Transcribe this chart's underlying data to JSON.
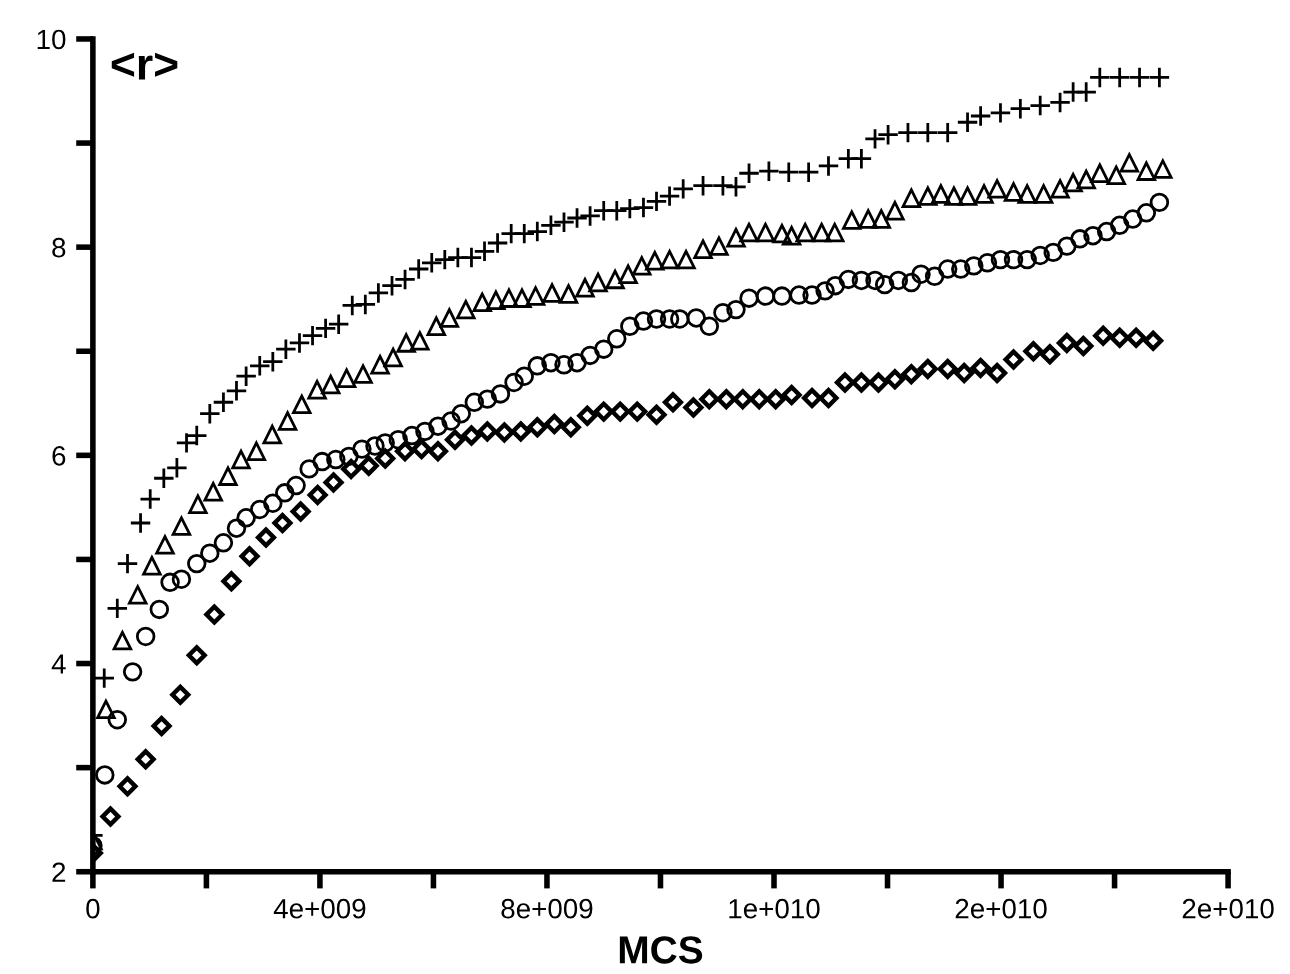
{
  "chart_data": {
    "type": "scatter",
    "xlabel": "MCS",
    "ylabel": "<r>",
    "xlim": [
      0,
      20000000000
    ],
    "ylim": [
      2,
      10
    ],
    "xticks": [
      0,
      {
        "value": 2000000000.0,
        "label": null
      },
      {
        "value": 4000000000.0,
        "label": "4e+009"
      },
      {
        "value": 6000000000.0,
        "label": null
      },
      {
        "value": 8000000000.0,
        "label": "8e+009"
      },
      {
        "value": 10000000000.0,
        "label": null
      },
      {
        "value": 12000000000.0,
        "label": "1e+010"
      },
      {
        "value": 14000000000.0,
        "label": null
      },
      {
        "value": 16000000000.0,
        "label": "2e+010"
      },
      {
        "value": 18000000000.0,
        "label": null
      },
      {
        "value": 20000000000.0,
        "label": "2e+010"
      }
    ],
    "yticks": [
      2,
      {
        "value": 3,
        "label": null
      },
      4,
      {
        "value": 5,
        "label": null
      },
      6,
      {
        "value": 7,
        "label": null
      },
      8,
      {
        "value": 9,
        "label": null
      },
      10
    ],
    "grid": false,
    "legend": false,
    "series": [
      {
        "color": "#000000",
        "marker": "cross",
        "x": [
          0,
          200000000.0,
          430000000.0,
          610000000.0,
          840000000.0,
          1010000000.0,
          1250000000.0,
          1480000000.0,
          1650000000.0,
          1830000000.0,
          2060000000.0,
          2300000000.0,
          2530000000.0,
          2700000000.0,
          2940000000.0,
          3170000000.0,
          3400000000.0,
          3640000000.0,
          3870000000.0,
          4100000000.0,
          4330000000.0,
          4570000000.0,
          4800000000.0,
          5030000000.0,
          5270000000.0,
          5500000000.0,
          5740000000.0,
          5970000000.0,
          6200000000.0,
          6430000000.0,
          6670000000.0,
          6900000000.0,
          7130000000.0,
          7370000000.0,
          7600000000.0,
          7830000000.0,
          8070000000.0,
          8300000000.0,
          8530000000.0,
          8760000000.0,
          9000000000.0,
          9230000000.0,
          9460000000.0,
          9700000000.0,
          9930000000.0,
          10160000000.0,
          10400000000.0,
          10750000000.0,
          11100000000.0,
          11330000000.0,
          11560000000.0,
          11910000000.0,
          12260000000.0,
          12610000000.0,
          12960000000.0,
          13310000000.0,
          13540000000.0,
          13780000000.0,
          14010000000.0,
          14360000000.0,
          14710000000.0,
          15060000000.0,
          15410000000.0,
          15640000000.0,
          15990000000.0,
          16340000000.0,
          16690000000.0,
          17040000000.0,
          17270000000.0,
          17500000000.0,
          17740000000.0,
          18090000000.0,
          18440000000.0,
          18790000000.0
        ],
        "values": [
          2.35,
          3.86,
          4.53,
          4.96,
          5.35,
          5.58,
          5.78,
          5.88,
          6.12,
          6.19,
          6.4,
          6.51,
          6.62,
          6.76,
          6.86,
          6.9,
          7.02,
          7.08,
          7.15,
          7.22,
          7.26,
          7.44,
          7.45,
          7.56,
          7.63,
          7.69,
          7.79,
          7.85,
          7.88,
          7.9,
          7.9,
          7.96,
          8.04,
          8.13,
          8.13,
          8.15,
          8.21,
          8.24,
          8.28,
          8.3,
          8.35,
          8.35,
          8.37,
          8.38,
          8.44,
          8.49,
          8.56,
          8.59,
          8.59,
          8.58,
          8.71,
          8.73,
          8.72,
          8.72,
          8.78,
          8.85,
          8.85,
          9.04,
          9.08,
          9.1,
          9.1,
          9.1,
          9.2,
          9.26,
          9.29,
          9.33,
          9.36,
          9.39,
          9.49,
          9.49,
          9.63,
          9.63,
          9.63,
          9.63
        ]
      },
      {
        "color": "#000000",
        "marker": "triangle",
        "x": [
          0,
          230000000.0,
          520000000.0,
          790000000.0,
          1040000000.0,
          1270000000.0,
          1560000000.0,
          1850000000.0,
          2120000000.0,
          2380000000.0,
          2610000000.0,
          2880000000.0,
          3160000000.0,
          3430000000.0,
          3680000000.0,
          3950000000.0,
          4190000000.0,
          4470000000.0,
          4760000000.0,
          5060000000.0,
          5290000000.0,
          5520000000.0,
          5760000000.0,
          6050000000.0,
          6280000000.0,
          6570000000.0,
          6860000000.0,
          7100000000.0,
          7330000000.0,
          7560000000.0,
          7800000000.0,
          8090000000.0,
          8380000000.0,
          8670000000.0,
          8900000000.0,
          9200000000.0,
          9430000000.0,
          9670000000.0,
          9900000000.0,
          10160000000.0,
          10450000000.0,
          10750000000.0,
          11030000000.0,
          11330000000.0,
          11560000000.0,
          11850000000.0,
          12140000000.0,
          12310000000.0,
          12550000000.0,
          12840000000.0,
          13070000000.0,
          13370000000.0,
          13660000000.0,
          13890000000.0,
          14130000000.0,
          14420000000.0,
          14710000000.0,
          14940000000.0,
          15170000000.0,
          15410000000.0,
          15700000000.0,
          15930000000.0,
          16220000000.0,
          16460000000.0,
          16750000000.0,
          17040000000.0,
          17270000000.0,
          17500000000.0,
          17740000000.0,
          18030000000.0,
          18260000000.0,
          18560000000.0,
          18850000000.0
        ],
        "values": [
          2.3,
          3.56,
          4.22,
          4.66,
          4.94,
          5.14,
          5.32,
          5.53,
          5.65,
          5.8,
          5.96,
          6.04,
          6.2,
          6.33,
          6.49,
          6.63,
          6.68,
          6.74,
          6.78,
          6.87,
          6.94,
          7.08,
          7.1,
          7.24,
          7.32,
          7.4,
          7.47,
          7.49,
          7.51,
          7.51,
          7.53,
          7.56,
          7.55,
          7.61,
          7.66,
          7.69,
          7.74,
          7.82,
          7.87,
          7.88,
          7.88,
          7.98,
          8.01,
          8.09,
          8.14,
          8.14,
          8.13,
          8.11,
          8.14,
          8.14,
          8.14,
          8.26,
          8.27,
          8.27,
          8.35,
          8.47,
          8.49,
          8.51,
          8.49,
          8.49,
          8.51,
          8.56,
          8.53,
          8.51,
          8.51,
          8.56,
          8.62,
          8.65,
          8.71,
          8.69,
          8.81,
          8.73,
          8.75
        ]
      },
      {
        "color": "#000000",
        "marker": "circle",
        "x": [
          0,
          210000000.0,
          430000000.0,
          700000000.0,
          930000000.0,
          1170000000.0,
          1360000000.0,
          1560000000.0,
          1830000000.0,
          2060000000.0,
          2300000000.0,
          2530000000.0,
          2700000000.0,
          2940000000.0,
          3170000000.0,
          3380000000.0,
          3580000000.0,
          3810000000.0,
          4040000000.0,
          4280000000.0,
          4510000000.0,
          4740000000.0,
          4970000000.0,
          5150000000.0,
          5380000000.0,
          5620000000.0,
          5850000000.0,
          6080000000.0,
          6310000000.0,
          6490000000.0,
          6720000000.0,
          6950000000.0,
          7180000000.0,
          7420000000.0,
          7600000000.0,
          7830000000.0,
          8070000000.0,
          8300000000.0,
          8530000000.0,
          8760000000.0,
          9000000000.0,
          9230000000.0,
          9460000000.0,
          9700000000.0,
          9930000000.0,
          10160000000.0,
          10340000000.0,
          10630000000.0,
          10860000000.0,
          11100000000.0,
          11330000000.0,
          11560000000.0,
          11850000000.0,
          12140000000.0,
          12440000000.0,
          12670000000.0,
          12900000000.0,
          13080000000.0,
          13310000000.0,
          13540000000.0,
          13780000000.0,
          13950000000.0,
          14190000000.0,
          14420000000.0,
          14590000000.0,
          14830000000.0,
          15060000000.0,
          15290000000.0,
          15520000000.0,
          15760000000.0,
          15990000000.0,
          16220000000.0,
          16460000000.0,
          16690000000.0,
          16920000000.0,
          17160000000.0,
          17390000000.0,
          17620000000.0,
          17860000000.0,
          18090000000.0,
          18320000000.0,
          18560000000.0,
          18790000000.0
        ],
        "values": [
          2.25,
          2.93,
          3.46,
          3.92,
          4.26,
          4.52,
          4.78,
          4.81,
          4.96,
          5.06,
          5.16,
          5.3,
          5.4,
          5.48,
          5.54,
          5.64,
          5.71,
          5.87,
          5.94,
          5.96,
          5.99,
          6.06,
          6.09,
          6.12,
          6.15,
          6.19,
          6.23,
          6.28,
          6.33,
          6.4,
          6.51,
          6.54,
          6.59,
          6.7,
          6.76,
          6.86,
          6.89,
          6.87,
          6.89,
          6.96,
          7.02,
          7.12,
          7.24,
          7.29,
          7.31,
          7.31,
          7.31,
          7.32,
          7.24,
          7.37,
          7.4,
          7.51,
          7.53,
          7.53,
          7.54,
          7.54,
          7.58,
          7.63,
          7.69,
          7.68,
          7.68,
          7.64,
          7.68,
          7.66,
          7.74,
          7.72,
          7.79,
          7.79,
          7.82,
          7.85,
          7.88,
          7.88,
          7.88,
          7.92,
          7.95,
          8.01,
          8.08,
          8.11,
          8.15,
          8.21,
          8.27,
          8.33,
          8.43
        ]
      },
      {
        "color": "#000000",
        "marker": "diamond",
        "x": [
          0,
          310000000.0,
          610000000.0,
          930000000.0,
          1210000000.0,
          1540000000.0,
          1830000000.0,
          2140000000.0,
          2440000000.0,
          2760000000.0,
          3050000000.0,
          3340000000.0,
          3660000000.0,
          3960000000.0,
          4240000000.0,
          4550000000.0,
          4860000000.0,
          5150000000.0,
          5500000000.0,
          5790000000.0,
          6080000000.0,
          6380000000.0,
          6670000000.0,
          6950000000.0,
          7250000000.0,
          7540000000.0,
          7830000000.0,
          8130000000.0,
          8420000000.0,
          8710000000.0,
          9000000000.0,
          9290000000.0,
          9590000000.0,
          9930000000.0,
          10220000000.0,
          10580000000.0,
          10860000000.0,
          11160000000.0,
          11450000000.0,
          11740000000.0,
          12030000000.0,
          12310000000.0,
          12670000000.0,
          12960000000.0,
          13250000000.0,
          13540000000.0,
          13840000000.0,
          14130000000.0,
          14420000000.0,
          14710000000.0,
          15060000000.0,
          15350000000.0,
          15640000000.0,
          15930000000.0,
          16220000000.0,
          16570000000.0,
          16860000000.0,
          17160000000.0,
          17450000000.0,
          17800000000.0,
          18090000000.0,
          18380000000.0,
          18680000000.0
        ],
        "values": [
          2.18,
          2.53,
          2.82,
          3.08,
          3.4,
          3.7,
          4.08,
          4.47,
          4.79,
          5.03,
          5.21,
          5.35,
          5.46,
          5.62,
          5.74,
          5.87,
          5.9,
          5.97,
          6.04,
          6.06,
          6.04,
          6.15,
          6.19,
          6.23,
          6.22,
          6.23,
          6.27,
          6.3,
          6.27,
          6.38,
          6.42,
          6.42,
          6.42,
          6.39,
          6.51,
          6.46,
          6.54,
          6.54,
          6.54,
          6.54,
          6.54,
          6.58,
          6.55,
          6.55,
          6.7,
          6.7,
          6.7,
          6.73,
          6.78,
          6.83,
          6.83,
          6.79,
          6.84,
          6.79,
          6.92,
          7.0,
          6.97,
          7.08,
          7.05,
          7.15,
          7.13,
          7.13,
          7.1
        ]
      }
    ]
  }
}
